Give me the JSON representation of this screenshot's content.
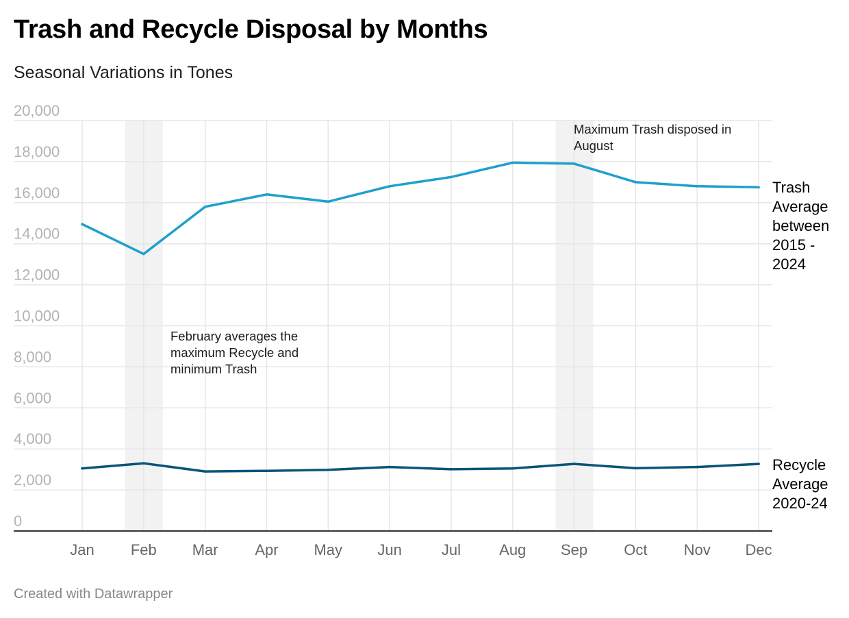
{
  "title": "Trash and Recycle Disposal by Months",
  "subtitle": "Seasonal Variations in Tones",
  "footer": "Created with Datawrapper",
  "chart_data": {
    "type": "line",
    "categories": [
      "Jan",
      "Feb",
      "Mar",
      "Apr",
      "May",
      "Jun",
      "Jul",
      "Aug",
      "Sep",
      "Oct",
      "Nov",
      "Dec"
    ],
    "ylim": [
      0,
      20000
    ],
    "yticks": [
      "0",
      "2,000",
      "4,000",
      "6,000",
      "8,000",
      "10,000",
      "12,000",
      "14,000",
      "16,000",
      "18,000",
      "20,000"
    ],
    "grid": true,
    "series": [
      {
        "name": "Trash Average between 2015 - 2024",
        "label_lines": [
          "Trash",
          "Average",
          "between",
          "2015 -",
          "2024"
        ],
        "color": "#1fa0cc",
        "values": [
          14950,
          13500,
          15800,
          16400,
          16050,
          16800,
          17250,
          17950,
          17900,
          17000,
          16800,
          16750
        ]
      },
      {
        "name": "Recycle Average 2020-24",
        "label_lines": [
          "Recycle",
          "Average",
          "2020-24"
        ],
        "color": "#0a5577",
        "values": [
          3050,
          3300,
          2900,
          2930,
          2980,
          3120,
          3010,
          3050,
          3270,
          3060,
          3120,
          3270
        ]
      }
    ],
    "highlights": [
      {
        "category": "Feb",
        "color": "#f2f2f2"
      },
      {
        "category": "Sep",
        "color": "#f2f2f2"
      }
    ],
    "annotations": [
      {
        "category": "Feb",
        "lines": [
          "February averages the",
          "maximum Recycle and",
          "minimum Trash"
        ]
      },
      {
        "category": "Sep",
        "lines": [
          "Maximum Trash disposed in",
          "August"
        ]
      }
    ],
    "colors": {
      "grid": "#e6e6e6",
      "baseline": "#333333"
    }
  }
}
